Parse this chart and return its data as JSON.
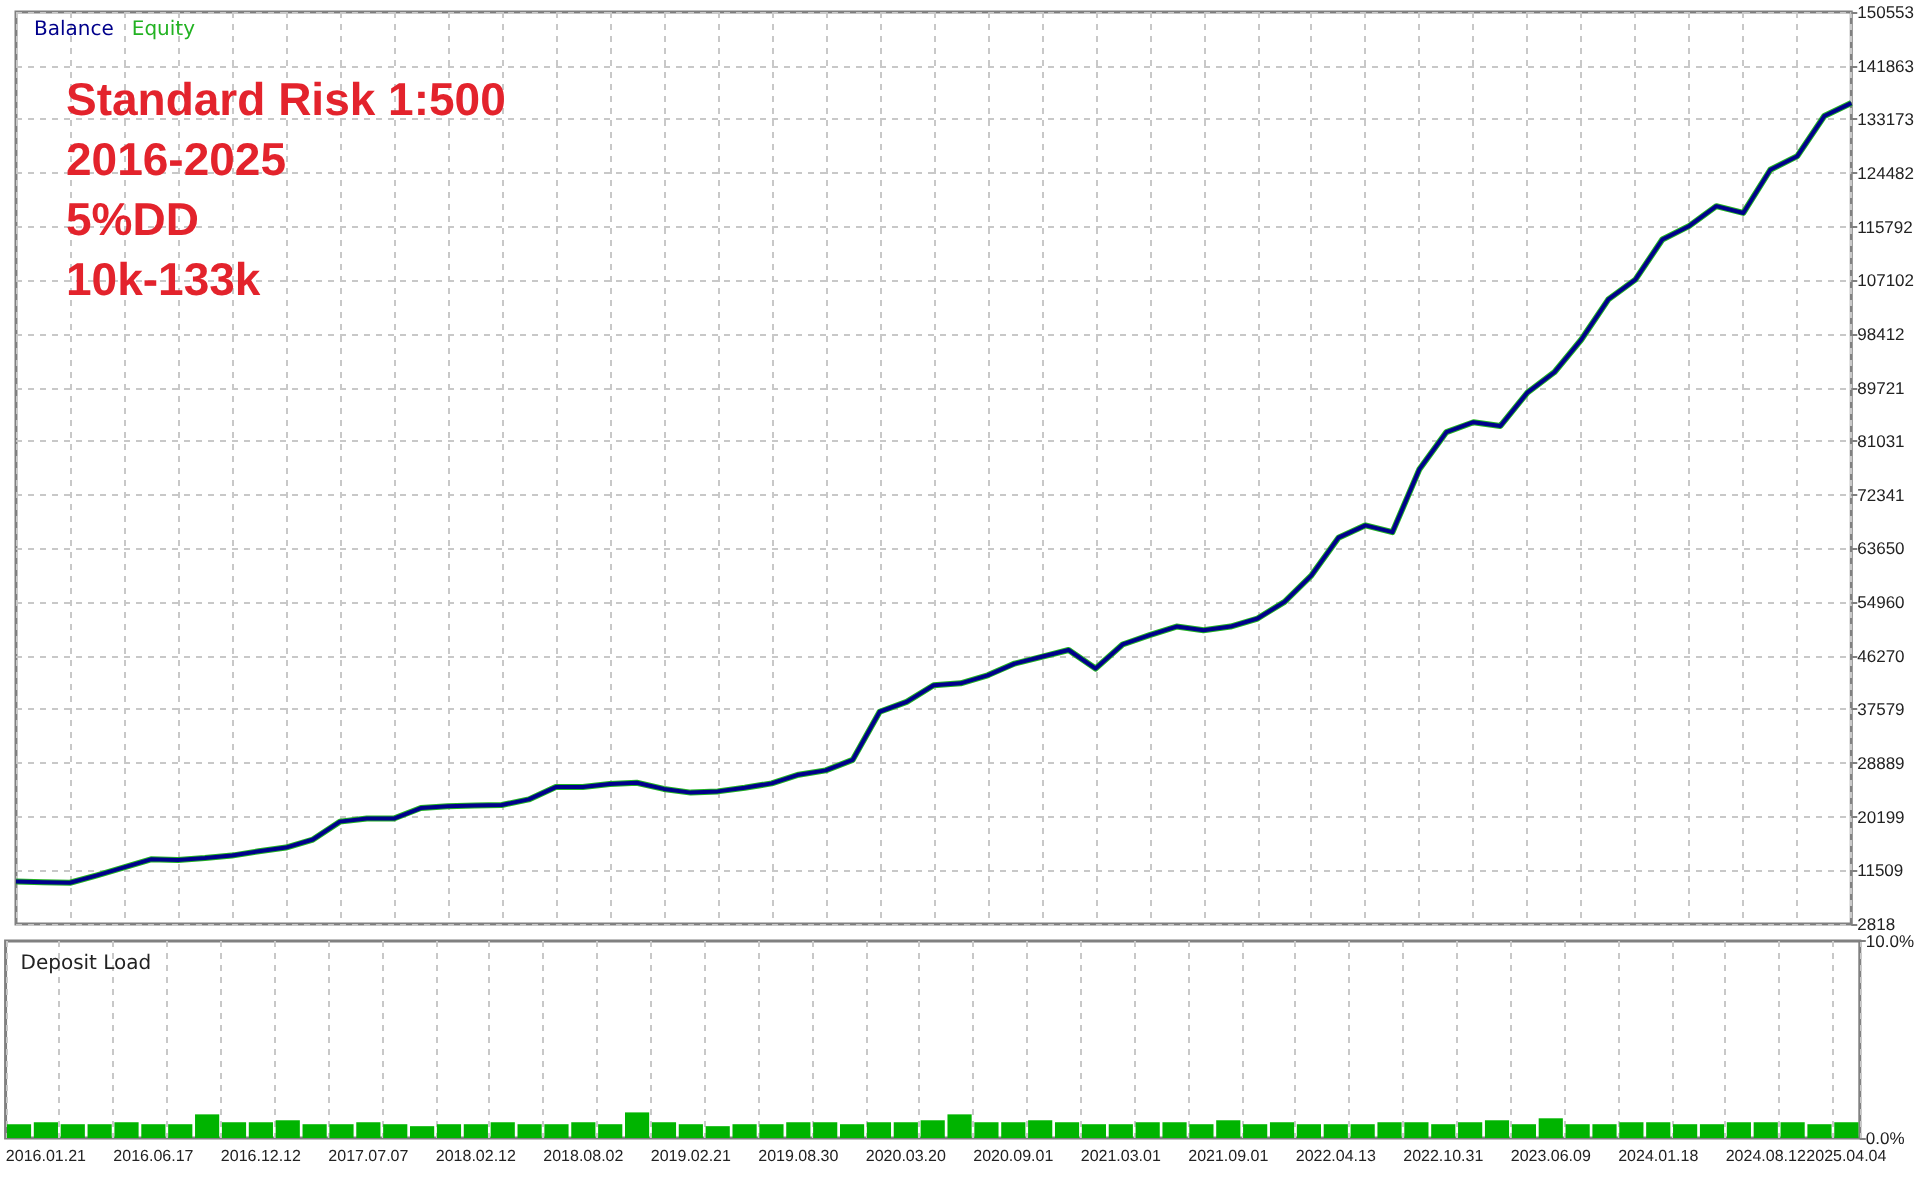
{
  "chart_data": [
    {
      "type": "line",
      "annotations": [
        "Standard Risk 1:500",
        "2016-2025",
        "5%DD",
        "10k-133k"
      ],
      "categories": [
        null,
        "2016.01.21",
        null,
        null,
        null,
        "2016.06.17",
        null,
        null,
        null,
        "2016.12.12",
        null,
        null,
        null,
        "2017.07.07",
        null,
        null,
        null,
        "2018.02.12",
        null,
        null,
        null,
        "2018.08.02",
        null,
        null,
        null,
        "2019.02.21",
        null,
        null,
        null,
        "2019.08.30",
        null,
        null,
        null,
        "2020.03.20",
        null,
        null,
        null,
        "2020.09.01",
        null,
        null,
        null,
        "2021.03.01",
        null,
        null,
        null,
        "2021.09.01",
        null,
        null,
        null,
        "2022.04.13",
        null,
        null,
        null,
        "2022.10.31",
        null,
        null,
        null,
        "2023.06.09",
        null,
        null,
        null,
        "2024.01.18",
        null,
        null,
        null,
        "2024.08.12",
        null,
        null,
        "2025.04.04"
      ],
      "series": [
        {
          "name": "Balance",
          "color": "#00008b",
          "values": [
            9700,
            9600,
            9500,
            10700,
            12000,
            13300,
            13200,
            13500,
            13900,
            14600,
            15200,
            16500,
            19400,
            19900,
            19900,
            21600,
            21900,
            22000,
            22100,
            23000,
            25000,
            25000,
            25500,
            25700,
            24700,
            24100,
            24300,
            24900,
            25600,
            27000,
            27700,
            29400,
            37200,
            38800,
            41500,
            41800,
            43100,
            45000,
            46100,
            47200,
            44200,
            48100,
            49600,
            51000,
            50400,
            51000,
            52300,
            55000,
            59300,
            65400,
            67400,
            66300,
            76500,
            82500,
            84100,
            83500,
            88900,
            92200,
            97500,
            104000,
            107200,
            113700,
            115900,
            119100,
            118000,
            125000,
            127200,
            133700,
            135800
          ]
        },
        {
          "name": "Equity",
          "color": "#22b222",
          "values": [
            9700,
            9600,
            9500,
            10700,
            12000,
            13300,
            13200,
            13500,
            13900,
            14600,
            15200,
            16500,
            19400,
            19900,
            19900,
            21600,
            21900,
            22000,
            22100,
            23000,
            25000,
            25000,
            25500,
            25700,
            24700,
            24100,
            24300,
            24900,
            25600,
            27000,
            27700,
            29400,
            37200,
            38800,
            41500,
            41800,
            43100,
            45000,
            46100,
            47200,
            44200,
            48100,
            49600,
            51000,
            50400,
            51000,
            52300,
            55000,
            59300,
            65400,
            67400,
            66300,
            76500,
            82500,
            84100,
            83500,
            88900,
            92200,
            97500,
            104000,
            107200,
            113700,
            115900,
            119100,
            118000,
            125000,
            127200,
            133700,
            135800
          ]
        }
      ],
      "ylim": [
        2818,
        150553
      ],
      "yticks": [
        2818,
        11509,
        20199,
        28889,
        37579,
        46270,
        54960,
        63650,
        72341,
        81031,
        89721,
        98412,
        107102,
        115792,
        124482,
        133173,
        141863,
        150553
      ],
      "grid": true,
      "legend": "top left",
      "tick_labels": "y"
    },
    {
      "type": "bar",
      "title": "Deposit Load",
      "categories": [
        null,
        "2016.01.21",
        null,
        null,
        null,
        "2016.06.17",
        null,
        null,
        null,
        "2016.12.12",
        null,
        null,
        null,
        "2017.07.07",
        null,
        null,
        null,
        "2018.02.12",
        null,
        null,
        null,
        "2018.08.02",
        null,
        null,
        null,
        "2019.02.21",
        null,
        null,
        null,
        "2019.08.30",
        null,
        null,
        null,
        "2020.03.20",
        null,
        null,
        null,
        "2020.09.01",
        null,
        null,
        null,
        "2021.03.01",
        null,
        null,
        null,
        "2021.09.01",
        null,
        null,
        null,
        "2022.04.13",
        null,
        null,
        null,
        "2022.10.31",
        null,
        null,
        null,
        "2023.06.09",
        null,
        null,
        null,
        "2024.01.18",
        null,
        null,
        null,
        "2024.08.12",
        null,
        null,
        "2025.04.04"
      ],
      "series": [
        {
          "color": "#00b400",
          "values": [
            0.7,
            0.8,
            0.7,
            0.7,
            0.8,
            0.7,
            0.7,
            1.2,
            0.8,
            0.8,
            0.9,
            0.7,
            0.7,
            0.8,
            0.7,
            0.6,
            0.7,
            0.7,
            0.8,
            0.7,
            0.7,
            0.8,
            0.7,
            1.3,
            0.8,
            0.7,
            0.6,
            0.7,
            0.7,
            0.8,
            0.8,
            0.7,
            0.8,
            0.8,
            0.9,
            1.2,
            0.8,
            0.8,
            0.9,
            0.8,
            0.7,
            0.7,
            0.8,
            0.8,
            0.7,
            0.9,
            0.7,
            0.8,
            0.7,
            0.7,
            0.7,
            0.8,
            0.8,
            0.7,
            0.8,
            0.9,
            0.7,
            1.0,
            0.7,
            0.7,
            0.8,
            0.8,
            0.7,
            0.7,
            0.8,
            0.8,
            0.8,
            0.7,
            0.8
          ]
        }
      ],
      "ylim": [
        0,
        10
      ],
      "yticks": [
        {
          "value": 0,
          "label": "0.0%"
        },
        {
          "value": 10,
          "label": "10.0%"
        }
      ],
      "grid": "x"
    }
  ]
}
